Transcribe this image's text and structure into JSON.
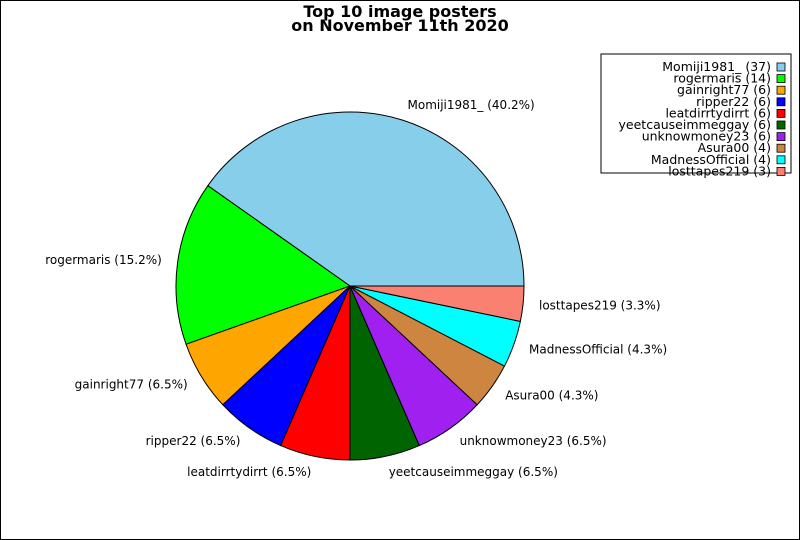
{
  "chart_data": {
    "type": "pie",
    "title_line1": "Top 10 image posters",
    "title_line2": "on November 11th 2020",
    "start_angle_deg": 0,
    "direction": "counterclockwise",
    "legend_position": "top-right",
    "slices": [
      {
        "name": "Momiji1981_",
        "count": 37,
        "percent_label": "Momiji1981_ (40.2%)",
        "legend_label": "Momiji1981_ (37)",
        "color": "#87CEEB"
      },
      {
        "name": "rogermaris",
        "count": 14,
        "percent_label": "rogermaris (15.2%)",
        "legend_label": "rogermaris (14)",
        "color": "#00FF00"
      },
      {
        "name": "gainright77",
        "count": 6,
        "percent_label": "gainright77 (6.5%)",
        "legend_label": "gainright77 (6)",
        "color": "#FFA500"
      },
      {
        "name": "ripper22",
        "count": 6,
        "percent_label": "ripper22 (6.5%)",
        "legend_label": "ripper22 (6)",
        "color": "#0000FF"
      },
      {
        "name": "leatdirrtydirrt",
        "count": 6,
        "percent_label": "leatdirrtydirrt (6.5%)",
        "legend_label": "leatdirrtydirrt (6)",
        "color": "#FF0000"
      },
      {
        "name": "yeetcauseimmeggay",
        "count": 6,
        "percent_label": "yeetcauseimmeggay (6.5%)",
        "legend_label": "yeetcauseimmeggay (6)",
        "color": "#006400"
      },
      {
        "name": "unknowmoney23",
        "count": 6,
        "percent_label": "unknowmoney23 (6.5%)",
        "legend_label": "unknowmoney23 (6)",
        "color": "#A020F0"
      },
      {
        "name": "Asura00",
        "count": 4,
        "percent_label": "Asura00 (4.3%)",
        "legend_label": "Asura00 (4)",
        "color": "#CD853F"
      },
      {
        "name": "MadnessOfficial",
        "count": 4,
        "percent_label": "MadnessOfficial (4.3%)",
        "legend_label": "MadnessOfficial (4)",
        "color": "#00FFFF"
      },
      {
        "name": "losttapes219",
        "count": 3,
        "percent_label": "losttapes219 (3.3%)",
        "legend_label": "losttapes219 (3)",
        "color": "#FA8072"
      }
    ]
  }
}
